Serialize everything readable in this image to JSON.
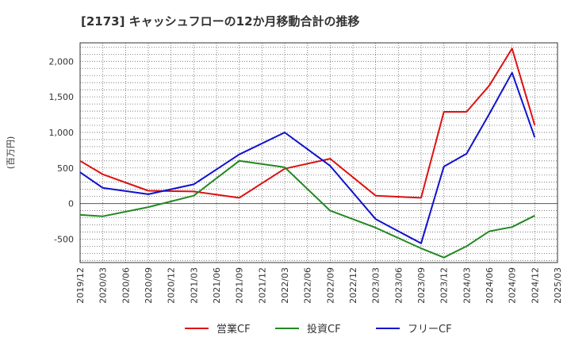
{
  "chart_data": {
    "type": "line",
    "title": "[2173]  キャッシュフローの12か月移動合計の推移",
    "ylabel": "(百万円)",
    "xlabel": "",
    "ylim": [
      -830,
      2260
    ],
    "yticks": [
      2000,
      1500,
      1000,
      500,
      0,
      -500
    ],
    "ytick_labels": [
      "2,000",
      "1,500",
      "1,000",
      "500",
      "0",
      "-500"
    ],
    "categories": [
      "2019/12",
      "2020/03",
      "2020/06",
      "2020/09",
      "2020/12",
      "2021/03",
      "2021/06",
      "2021/09",
      "2021/12",
      "2022/03",
      "2022/06",
      "2022/09",
      "2022/12",
      "2023/03",
      "2023/06",
      "2023/09",
      "2023/12",
      "2024/03",
      "2024/06",
      "2024/09",
      "2024/12",
      "2025/03"
    ],
    "grid": true,
    "legend_position": "bottom",
    "series": [
      {
        "name": "営業CF",
        "color": "#dd1111",
        "points": [
          [
            0,
            600
          ],
          [
            1,
            410
          ],
          [
            3,
            180
          ],
          [
            5,
            170
          ],
          [
            7,
            80
          ],
          [
            9,
            490
          ],
          [
            11,
            630
          ],
          [
            13,
            110
          ],
          [
            15,
            80
          ],
          [
            16,
            1290
          ],
          [
            17,
            1290
          ],
          [
            18,
            1660
          ],
          [
            19,
            2180
          ],
          [
            20,
            1100
          ]
        ]
      },
      {
        "name": "投資CF",
        "color": "#228822",
        "points": [
          [
            0,
            -160
          ],
          [
            1,
            -180
          ],
          [
            3,
            -50
          ],
          [
            5,
            110
          ],
          [
            7,
            600
          ],
          [
            9,
            510
          ],
          [
            11,
            -100
          ],
          [
            13,
            -340
          ],
          [
            15,
            -630
          ],
          [
            16,
            -760
          ],
          [
            17,
            -600
          ],
          [
            18,
            -390
          ],
          [
            19,
            -330
          ],
          [
            20,
            -170
          ]
        ]
      },
      {
        "name": "フリーCF",
        "color": "#1111cc",
        "points": [
          [
            0,
            440
          ],
          [
            1,
            220
          ],
          [
            3,
            130
          ],
          [
            5,
            270
          ],
          [
            7,
            690
          ],
          [
            9,
            1000
          ],
          [
            11,
            530
          ],
          [
            13,
            -220
          ],
          [
            15,
            -560
          ],
          [
            16,
            520
          ],
          [
            17,
            700
          ],
          [
            18,
            1260
          ],
          [
            19,
            1840
          ],
          [
            20,
            930
          ]
        ]
      }
    ]
  }
}
